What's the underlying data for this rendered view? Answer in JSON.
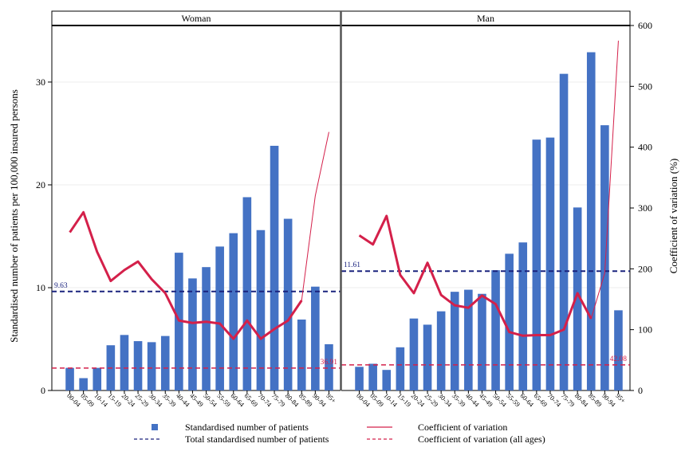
{
  "chart_data": {
    "type": "bar",
    "ylabel": "Standardised number of patients per 100,000 insured persons",
    "ylabel_right": "Coefficient of variation (%)",
    "left_axis": {
      "range": [
        0,
        35.5
      ],
      "ticks": [
        "0",
        "10",
        "20",
        "30"
      ],
      "tick_values": [
        0,
        10,
        20,
        30
      ]
    },
    "right_axis": {
      "range": [
        0,
        600
      ],
      "ticks": [
        "0",
        "100",
        "200",
        "300",
        "400",
        "500",
        "600"
      ],
      "tick_values": [
        0,
        100,
        200,
        300,
        400,
        500,
        600
      ]
    },
    "grid": "horizontal",
    "legend_position": "bottom",
    "categories": [
      "00-04",
      "05-09",
      "10-14",
      "15-19",
      "20-24",
      "25-29",
      "30-34",
      "35-39",
      "40-44",
      "45-49",
      "50-54",
      "55-59",
      "60-64",
      "65-69",
      "70-74",
      "75-79",
      "80-84",
      "85-89",
      "90-94",
      "95+"
    ],
    "panels": [
      {
        "title": "Woman",
        "bars": [
          2.2,
          1.2,
          2.2,
          4.4,
          5.4,
          4.8,
          4.7,
          5.3,
          13.4,
          10.9,
          12.0,
          14.0,
          15.3,
          18.8,
          15.6,
          23.8,
          16.7,
          6.9,
          10.1,
          4.5
        ],
        "cv": [
          260,
          293,
          228,
          180,
          198,
          212,
          183,
          160,
          115,
          111,
          113,
          110,
          85,
          115,
          85,
          101,
          115,
          148,
          320,
          425
        ],
        "total_label": "9.63",
        "total_value": 9.63,
        "cv_all_label": "36.91",
        "cv_all_value": 36.91
      },
      {
        "title": "Man",
        "bars": [
          2.3,
          2.6,
          2.0,
          4.2,
          7.0,
          6.4,
          7.7,
          9.6,
          9.8,
          9.4,
          11.7,
          13.3,
          14.4,
          24.4,
          24.6,
          30.8,
          17.8,
          32.9,
          25.8,
          7.8
        ],
        "cv": [
          255,
          240,
          287,
          190,
          160,
          210,
          157,
          140,
          136,
          156,
          142,
          96,
          90,
          91,
          91,
          100,
          160,
          118,
          193,
          575
        ],
        "total_label": "11.61",
        "total_value": 11.61,
        "cv_all_label": "42.08",
        "cv_all_value": 42.08
      }
    ],
    "series": [
      {
        "name": "Standardised number of patients",
        "color": "#4472c4",
        "kind": "bar"
      },
      {
        "name": "Coefficient of variation",
        "color": "#d4204a",
        "kind": "line"
      },
      {
        "name": "Total standardised number of patients",
        "color": "#1a237e",
        "kind": "dashed"
      },
      {
        "name": "Coefficient of variation (all ages)",
        "color": "#d4204a",
        "kind": "dashed"
      }
    ]
  }
}
